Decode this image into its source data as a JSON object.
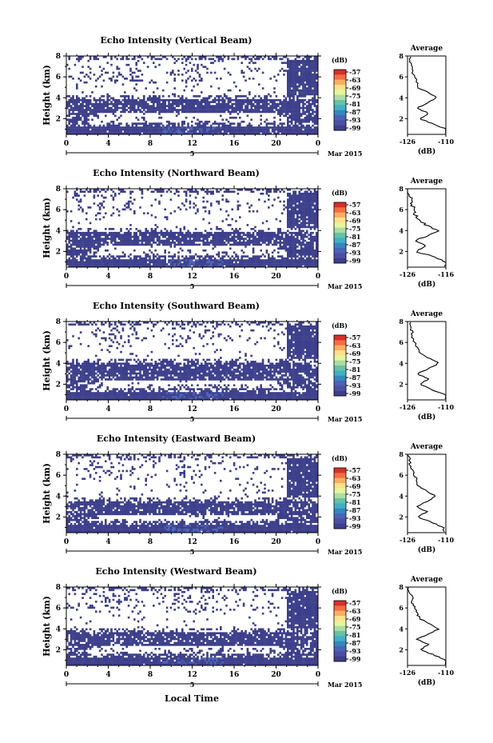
{
  "figure": {
    "x_axis_title": "Local Time",
    "date_label": "Mar 2015",
    "day_label": "5",
    "height_axis_title": "Height (km)",
    "colorbar_unit": "(dB)",
    "profile_title": "Average",
    "profile_unit": "(dB)"
  },
  "colorbar": {
    "ticks": [
      "-57",
      "-63",
      "-69",
      "-75",
      "-81",
      "-87",
      "-93",
      "-99"
    ],
    "colors": [
      "#d73027",
      "#f46d43",
      "#fdae61",
      "#fee08b",
      "#e6f598",
      "#abdda4",
      "#66c2a5",
      "#3fb0c8",
      "#3288bd",
      "#4a63b8",
      "#4b4fa5",
      "#3c3f8c"
    ]
  },
  "chart_data": [
    {
      "type": "heatmap",
      "title": "Echo Intensity (Vertical Beam)",
      "xlabel": "Local Time",
      "ylabel": "Height (km)",
      "x_ticks": [
        "0",
        "4",
        "8",
        "12",
        "16",
        "20",
        "0"
      ],
      "y_ticks": [
        "2",
        "4",
        "6",
        "8"
      ],
      "xlim": [
        0,
        24
      ],
      "ylim": [
        0.5,
        8
      ],
      "colorbar_unit": "dB",
      "profile": {
        "title": "Average",
        "xlabel": "(dB)",
        "x_ticks": [
          "-126",
          "-110"
        ],
        "xlim": [
          -126,
          -110
        ],
        "heights": [
          1.0,
          1.5,
          2.0,
          2.5,
          3.0,
          3.5,
          4.0,
          4.5,
          5.0,
          5.5,
          6.0,
          6.5,
          7.0,
          7.5,
          8.0
        ],
        "values": [
          -110,
          -115,
          -121,
          -117,
          -122,
          -118,
          -114,
          -117,
          -122,
          -122,
          -123,
          -124,
          -124,
          -125,
          -125
        ]
      }
    },
    {
      "type": "heatmap",
      "title": "Echo Intensity (Northward Beam)",
      "xlabel": "Local Time",
      "ylabel": "Height (km)",
      "x_ticks": [
        "0",
        "4",
        "8",
        "12",
        "16",
        "20",
        "0"
      ],
      "y_ticks": [
        "2",
        "4",
        "6",
        "8"
      ],
      "xlim": [
        0,
        24
      ],
      "ylim": [
        0.5,
        8
      ],
      "colorbar_unit": "dB",
      "profile": {
        "title": "Average",
        "xlabel": "(dB)",
        "x_ticks": [
          "-126",
          "-116"
        ],
        "xlim": [
          -126,
          -116
        ],
        "heights": [
          1.0,
          1.5,
          2.0,
          2.5,
          3.0,
          3.5,
          4.0,
          4.5,
          5.0,
          5.5,
          6.0,
          6.5,
          7.0,
          7.5,
          8.0
        ],
        "values": [
          -116,
          -119,
          -124,
          -121,
          -124,
          -121,
          -118,
          -121,
          -123,
          -124,
          -124,
          -125,
          -125,
          -126,
          -126
        ]
      }
    },
    {
      "type": "heatmap",
      "title": "Echo Intensity (Southward Beam)",
      "xlabel": "Local Time",
      "ylabel": "Height (km)",
      "x_ticks": [
        "0",
        "4",
        "8",
        "12",
        "16",
        "20",
        "0"
      ],
      "y_ticks": [
        "2",
        "4",
        "6",
        "8"
      ],
      "xlim": [
        0,
        24
      ],
      "ylim": [
        0.5,
        8
      ],
      "colorbar_unit": "dB",
      "profile": {
        "title": "Average",
        "xlabel": "(dB)",
        "x_ticks": [
          "-126",
          "-110"
        ],
        "xlim": [
          -126,
          -110
        ],
        "heights": [
          1.0,
          1.5,
          2.0,
          2.5,
          3.0,
          3.5,
          4.0,
          4.5,
          5.0,
          5.5,
          6.0,
          6.5,
          7.0,
          7.5,
          8.0
        ],
        "values": [
          -110,
          -116,
          -121,
          -117,
          -122,
          -117,
          -113,
          -117,
          -121,
          -122,
          -123,
          -124,
          -124,
          -125,
          -125
        ]
      }
    },
    {
      "type": "heatmap",
      "title": "Echo Intensity (Eastward Beam)",
      "xlabel": "Local Time",
      "ylabel": "Height (km)",
      "x_ticks": [
        "0",
        "4",
        "8",
        "12",
        "16",
        "20",
        "0"
      ],
      "y_ticks": [
        "2",
        "4",
        "6",
        "8"
      ],
      "xlim": [
        0,
        24
      ],
      "ylim": [
        0.5,
        8
      ],
      "colorbar_unit": "dB",
      "profile": {
        "title": "Average",
        "xlabel": "(dB)",
        "x_ticks": [
          "-126",
          "-110"
        ],
        "xlim": [
          -126,
          -110
        ],
        "heights": [
          1.0,
          1.5,
          2.0,
          2.5,
          3.0,
          3.5,
          4.0,
          4.5,
          5.0,
          5.5,
          6.0,
          6.5,
          7.0,
          7.5,
          8.0
        ],
        "values": [
          -111,
          -116,
          -122,
          -118,
          -122,
          -118,
          -114,
          -118,
          -122,
          -122,
          -123,
          -124,
          -125,
          -125,
          -126
        ]
      }
    },
    {
      "type": "heatmap",
      "title": "Echo Intensity (Westward Beam)",
      "xlabel": "Local Time",
      "ylabel": "Height (km)",
      "x_ticks": [
        "0",
        "4",
        "8",
        "12",
        "16",
        "20",
        "0"
      ],
      "y_ticks": [
        "2",
        "4",
        "6",
        "8"
      ],
      "xlim": [
        0,
        24
      ],
      "ylim": [
        0.5,
        8
      ],
      "colorbar_unit": "dB",
      "profile": {
        "title": "Average",
        "xlabel": "(dB)",
        "x_ticks": [
          "-126",
          "-110"
        ],
        "xlim": [
          -126,
          -110
        ],
        "heights": [
          1.0,
          1.5,
          2.0,
          2.5,
          3.0,
          3.5,
          4.0,
          4.5,
          5.0,
          5.5,
          6.0,
          6.5,
          7.0,
          7.5,
          8.0
        ],
        "values": [
          -110,
          -115,
          -121,
          -117,
          -122,
          -117,
          -113,
          -117,
          -121,
          -122,
          -123,
          -124,
          -124,
          -125,
          -126
        ]
      }
    }
  ]
}
